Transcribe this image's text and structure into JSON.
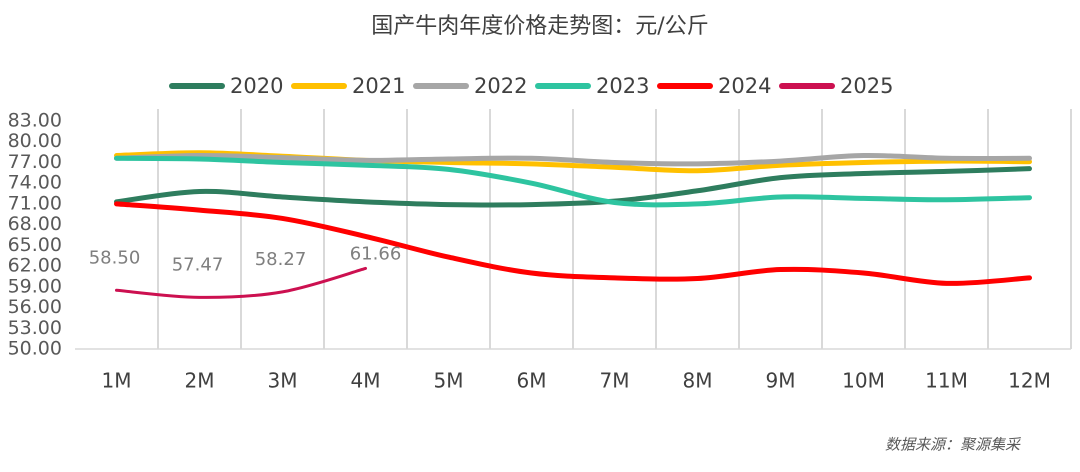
{
  "chart_data": {
    "type": "line",
    "title": "国产牛肉年度价格走势图：元/公斤",
    "source": "数据来源：聚源集采",
    "categories": [
      "1M",
      "2M",
      "3M",
      "4M",
      "5M",
      "6M",
      "7M",
      "8M",
      "9M",
      "10M",
      "11M",
      "12M"
    ],
    "series": [
      {
        "name": "2020",
        "color": "#2e7d5e",
        "values": [
          71.3,
          72.8,
          72.0,
          71.3,
          70.9,
          70.9,
          71.4,
          72.9,
          74.8,
          75.4,
          75.7,
          76.1
        ]
      },
      {
        "name": "2021",
        "color": "#ffc000",
        "values": [
          78.0,
          78.4,
          77.9,
          77.3,
          77.0,
          76.8,
          76.3,
          75.8,
          76.6,
          77.0,
          77.2,
          77.1
        ]
      },
      {
        "name": "2022",
        "color": "#a6a6a6",
        "values": [
          77.6,
          78.0,
          77.7,
          77.3,
          77.5,
          77.6,
          77.0,
          76.8,
          77.2,
          78.0,
          77.6,
          77.6
        ]
      },
      {
        "name": "2023",
        "color": "#2ec4a0",
        "values": [
          77.6,
          77.5,
          77.0,
          76.6,
          76.0,
          74.0,
          71.2,
          71.0,
          72.0,
          71.8,
          71.6,
          71.9
        ]
      },
      {
        "name": "2024",
        "color": "#ff0000",
        "values": [
          71.0,
          70.1,
          68.9,
          66.3,
          63.3,
          61.0,
          60.3,
          60.2,
          61.5,
          61.0,
          59.5,
          60.3
        ]
      },
      {
        "name": "2025",
        "color": "#cc1050",
        "values": [
          58.5,
          57.47,
          58.27,
          61.66,
          null,
          null,
          null,
          null,
          null,
          null,
          null,
          null
        ],
        "value_labels": [
          "58.50",
          "57.47",
          "58.27",
          "61.66",
          null,
          null,
          null,
          null,
          null,
          null,
          null,
          null
        ]
      }
    ],
    "ylim": [
      50,
      83
    ],
    "yticks": [
      {
        "value": 50,
        "label": "50.00"
      },
      {
        "value": 53,
        "label": "53.00"
      },
      {
        "value": 56,
        "label": "56.00"
      },
      {
        "value": 59,
        "label": "59.00"
      },
      {
        "value": 62,
        "label": "62.00"
      },
      {
        "value": 65,
        "label": "65.00"
      },
      {
        "value": 68,
        "label": "68.00"
      },
      {
        "value": 71,
        "label": "71.00"
      },
      {
        "value": 74,
        "label": "74.00"
      },
      {
        "value": 77,
        "label": "77.00"
      },
      {
        "value": 80,
        "label": "80.00"
      },
      {
        "value": 83,
        "label": "83.00"
      }
    ],
    "grid": true,
    "legend": "top"
  }
}
